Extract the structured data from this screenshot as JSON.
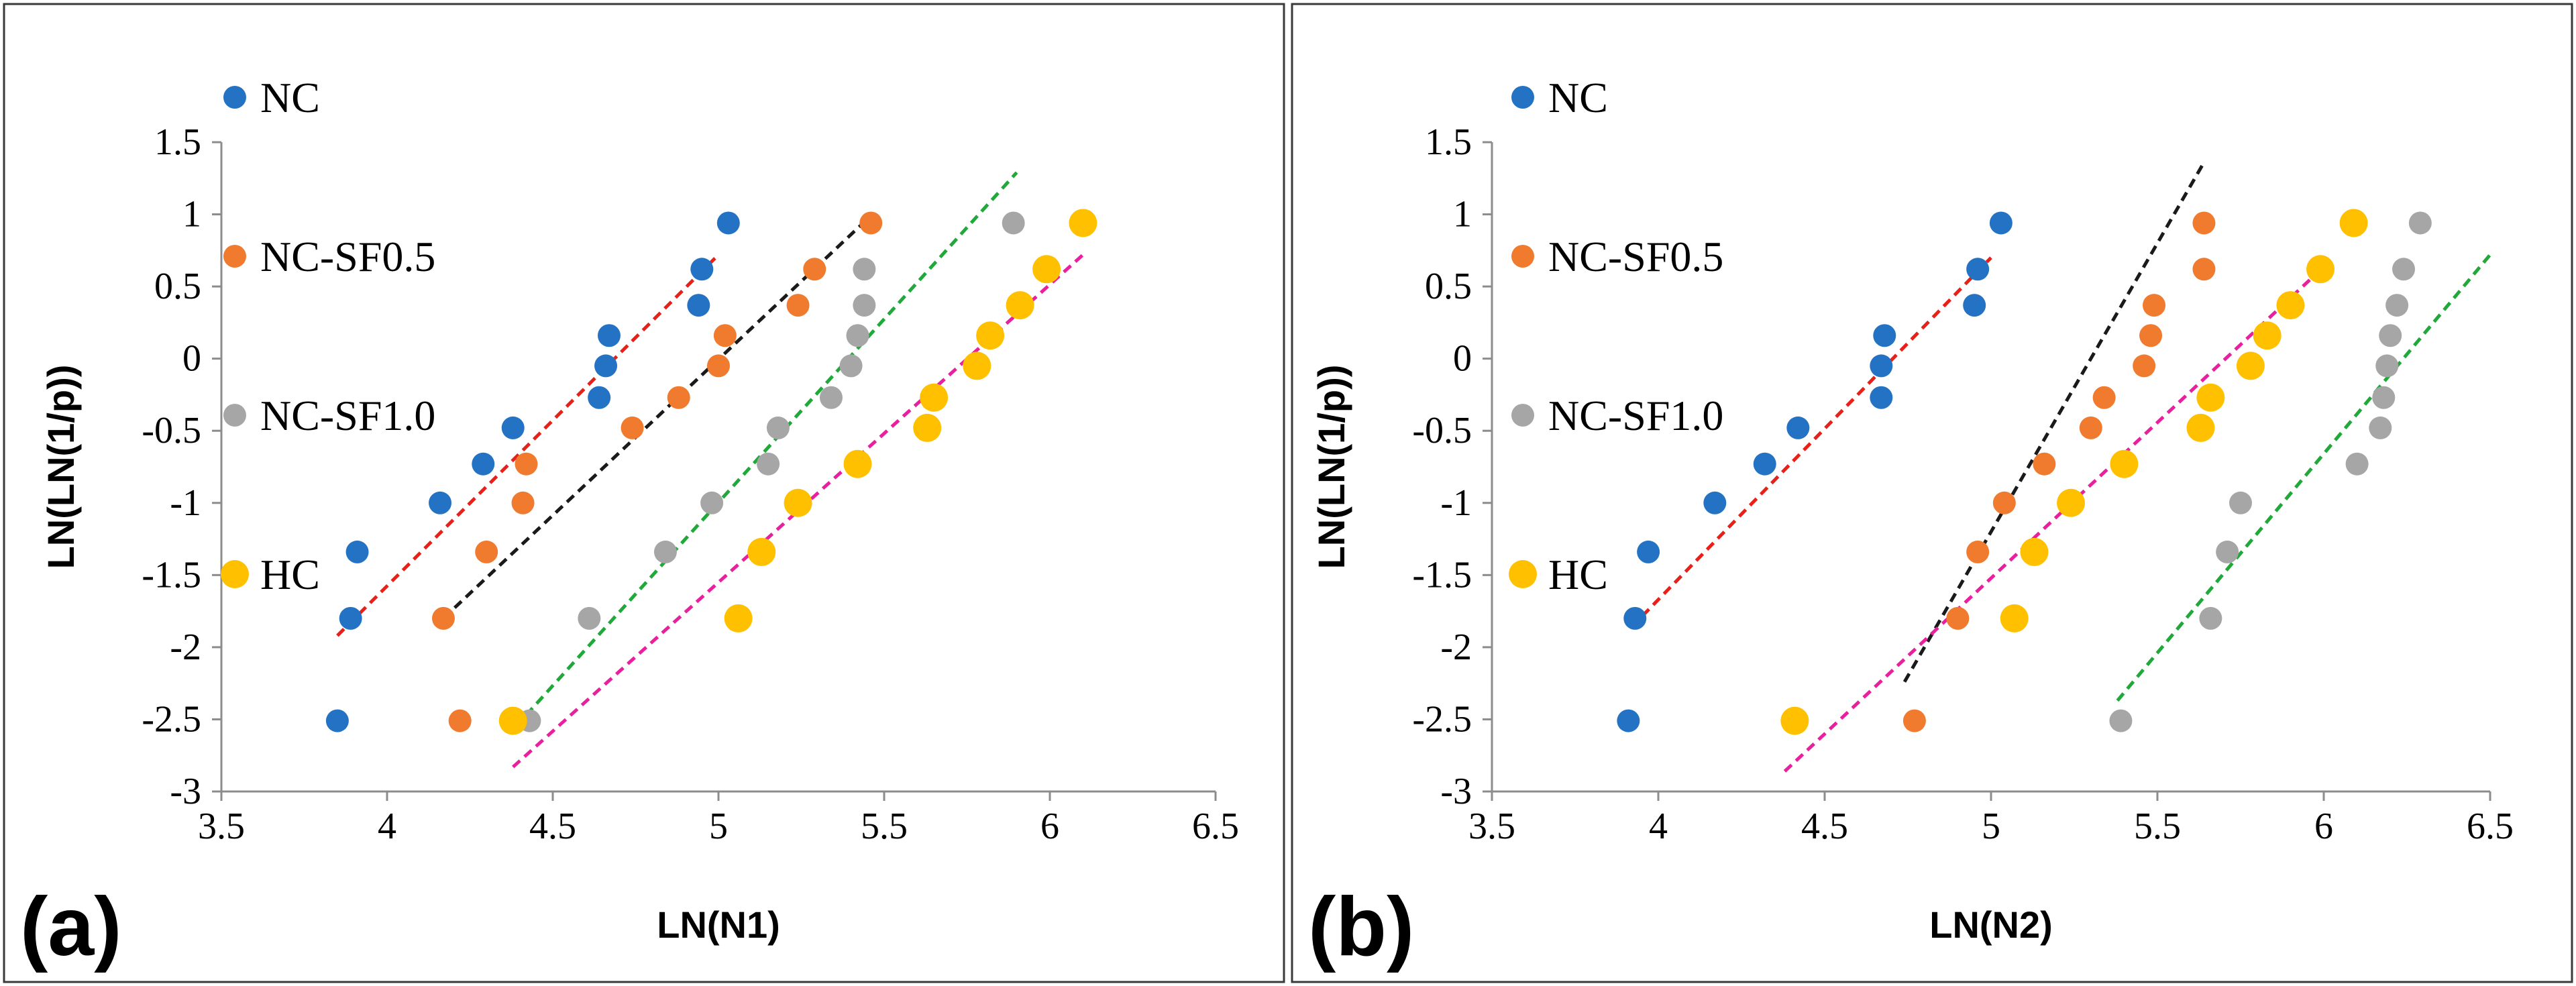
{
  "figure": {
    "panels": [
      "(a)",
      "(b)"
    ]
  },
  "chart_data": [
    {
      "type": "scatter",
      "panel_label": "(a)",
      "title": "",
      "xlabel": "LN(N1)",
      "ylabel": "LN(LN(1/p))",
      "xlim": [
        3.5,
        6.5
      ],
      "ylim": [
        -3,
        1.5
      ],
      "x_ticks": [
        "3.5",
        "4",
        "4.5",
        "5",
        "5.5",
        "6",
        "6.5"
      ],
      "y_ticks": [
        "-3",
        "-2.5",
        "-2",
        "-1.5",
        "-1",
        "-0.5",
        "0",
        "0.5",
        "1",
        "1.5"
      ],
      "grid": false,
      "legend_position": "left-inside",
      "series": [
        {
          "name": "NC",
          "color": "#2472c3",
          "x": [
            3.85,
            3.89,
            3.91,
            4.16,
            4.29,
            4.38,
            4.64,
            4.66,
            4.67,
            4.94,
            4.95,
            5.03
          ],
          "y": [
            -2.51,
            -1.8,
            -1.34,
            -1.0,
            -0.73,
            -0.48,
            -0.27,
            -0.05,
            0.16,
            0.37,
            0.62,
            0.94
          ],
          "fit": {
            "x": [
              3.85,
              5.0
            ],
            "y": [
              -1.92,
              0.72
            ],
            "color": "#e8201a"
          }
        },
        {
          "name": "NC-SF0.5",
          "color": "#f07a2e",
          "x": [
            4.17,
            4.22,
            4.3,
            4.41,
            4.42,
            4.74,
            4.88,
            5.0,
            5.02,
            5.24,
            5.29,
            5.46
          ],
          "y": [
            -1.8,
            -2.51,
            -1.34,
            -1.0,
            -0.73,
            -0.48,
            -0.27,
            -0.05,
            0.16,
            0.37,
            0.62,
            0.94
          ],
          "fit": {
            "x": [
              4.17,
              5.46
            ],
            "y": [
              -1.8,
              0.99
            ],
            "color": "#1a1a1a"
          }
        },
        {
          "name": "NC-SF1.0",
          "color": "#a6a6a6",
          "x": [
            4.43,
            4.61,
            4.84,
            4.98,
            5.15,
            5.18,
            5.34,
            5.4,
            5.42,
            5.44,
            5.44,
            5.89
          ],
          "y": [
            -2.51,
            -1.8,
            -1.34,
            -1.0,
            -0.73,
            -0.48,
            -0.27,
            -0.05,
            0.16,
            0.37,
            0.62,
            0.94
          ],
          "fit": {
            "x": [
              4.42,
              5.9
            ],
            "y": [
              -2.47,
              1.29
            ],
            "color": "#20a83a"
          }
        },
        {
          "name": "HC",
          "color": "#ffc000",
          "x": [
            4.38,
            5.06,
            5.13,
            5.24,
            5.42,
            5.63,
            5.65,
            5.78,
            5.82,
            5.91,
            5.99,
            6.1
          ],
          "y": [
            -2.51,
            -1.8,
            -1.34,
            -1.0,
            -0.73,
            -0.48,
            -0.27,
            -0.05,
            0.16,
            0.37,
            0.62,
            0.94
          ],
          "fit": {
            "x": [
              4.38,
              6.1
            ],
            "y": [
              -2.83,
              0.72
            ],
            "color": "#e8209e"
          }
        }
      ]
    },
    {
      "type": "scatter",
      "panel_label": "(b)",
      "title": "",
      "xlabel": "LN(N2)",
      "ylabel": "LN(LN(1/p))",
      "xlim": [
        3.5,
        6.5
      ],
      "ylim": [
        -3,
        1.5
      ],
      "x_ticks": [
        "3.5",
        "4",
        "4.5",
        "5",
        "5.5",
        "6",
        "6.5"
      ],
      "y_ticks": [
        "-3",
        "-2.5",
        "-2",
        "-1.5",
        "-1",
        "-0.5",
        "0",
        "0.5",
        "1",
        "1.5"
      ],
      "grid": false,
      "legend_position": "left-inside",
      "series": [
        {
          "name": "NC",
          "color": "#2472c3",
          "x": [
            3.91,
            3.93,
            3.97,
            4.17,
            4.32,
            4.42,
            4.67,
            4.67,
            4.68,
            4.95,
            4.96,
            5.03
          ],
          "y": [
            -2.51,
            -1.8,
            -1.34,
            -1.0,
            -0.73,
            -0.48,
            -0.27,
            -0.05,
            0.16,
            0.37,
            0.62,
            0.94
          ],
          "fit": {
            "x": [
              3.92,
              5.0
            ],
            "y": [
              -1.86,
              0.7
            ],
            "color": "#e8201a"
          }
        },
        {
          "name": "NC-SF0.5",
          "color": "#f07a2e",
          "x": [
            4.77,
            4.9,
            4.96,
            5.04,
            5.16,
            5.3,
            5.34,
            5.46,
            5.48,
            5.49,
            5.64,
            5.64
          ],
          "y": [
            -2.51,
            -1.8,
            -1.34,
            -1.0,
            -0.73,
            -0.48,
            -0.27,
            -0.05,
            0.16,
            0.37,
            0.62,
            0.94
          ],
          "fit": {
            "x": [
              4.74,
              5.64
            ],
            "y": [
              -2.24,
              1.36
            ],
            "color": "#1a1a1a"
          }
        },
        {
          "name": "NC-SF1.0",
          "color": "#a6a6a6",
          "x": [
            5.39,
            5.66,
            5.71,
            5.75,
            6.1,
            6.17,
            6.18,
            6.19,
            6.2,
            6.22,
            6.24,
            6.29
          ],
          "y": [
            -2.51,
            -1.8,
            -1.34,
            -1.0,
            -0.73,
            -0.48,
            -0.27,
            -0.05,
            0.16,
            0.37,
            0.62,
            0.94
          ],
          "fit": {
            "x": [
              5.38,
              6.5
            ],
            "y": [
              -2.37,
              0.72
            ],
            "color": "#20a83a"
          }
        },
        {
          "name": "HC",
          "color": "#ffc000",
          "x": [
            4.41,
            5.07,
            5.13,
            5.24,
            5.4,
            5.63,
            5.66,
            5.78,
            5.83,
            5.9,
            5.99,
            6.09
          ],
          "y": [
            -2.51,
            -1.8,
            -1.34,
            -1.0,
            -0.73,
            -0.48,
            -0.27,
            -0.05,
            0.16,
            0.37,
            0.62,
            0.94
          ],
          "fit": {
            "x": [
              4.38,
              6.02
            ],
            "y": [
              -2.86,
              0.68
            ],
            "color": "#e8209e"
          }
        }
      ]
    }
  ]
}
